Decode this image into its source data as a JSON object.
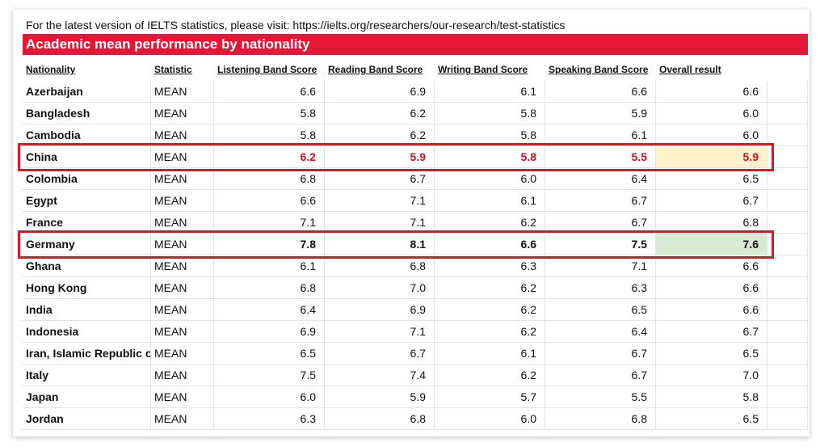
{
  "note": "For the latest version of IELTS statistics, please visit: https://ielts.org/researchers/our-research/test-statistics",
  "title": "Academic mean performance by nationality",
  "headers": [
    "Nationality",
    "Statistic",
    "Listening Band Score",
    "Reading Band Score",
    "Writing Band Score",
    "Speaking Band Score",
    "Overall result"
  ],
  "rows": [
    [
      "Azerbaijan",
      "MEAN",
      "6.6",
      "6.9",
      "6.1",
      "6.6",
      "6.6"
    ],
    [
      "Bangladesh",
      "MEAN",
      "5.8",
      "6.2",
      "5.8",
      "5.9",
      "6.0"
    ],
    [
      "Cambodia",
      "MEAN",
      "5.8",
      "6.2",
      "5.8",
      "6.1",
      "6.0"
    ],
    [
      "China",
      "MEAN",
      "6.2",
      "5.9",
      "5.8",
      "5.5",
      "5.9"
    ],
    [
      "Colombia",
      "MEAN",
      "6.8",
      "6.7",
      "6.0",
      "6.4",
      "6.5"
    ],
    [
      "Egypt",
      "MEAN",
      "6.6",
      "7.1",
      "6.1",
      "6.7",
      "6.7"
    ],
    [
      "France",
      "MEAN",
      "7.1",
      "7.1",
      "6.2",
      "6.7",
      "6.8"
    ],
    [
      "Germany",
      "MEAN",
      "7.8",
      "8.1",
      "6.6",
      "7.5",
      "7.6"
    ],
    [
      "Ghana",
      "MEAN",
      "6.1",
      "6.8",
      "6.3",
      "7.1",
      "6.6"
    ],
    [
      "Hong Kong",
      "MEAN",
      "6.8",
      "7.0",
      "6.2",
      "6.3",
      "6.6"
    ],
    [
      "India",
      "MEAN",
      "6.4",
      "6.9",
      "6.2",
      "6.5",
      "6.6"
    ],
    [
      "Indonesia",
      "MEAN",
      "6.9",
      "7.1",
      "6.2",
      "6.4",
      "6.7"
    ],
    [
      "Iran, Islamic Republic of",
      "MEAN",
      "6.5",
      "6.7",
      "6.1",
      "6.7",
      "6.5"
    ],
    [
      "Italy",
      "MEAN",
      "7.5",
      "7.4",
      "6.2",
      "6.7",
      "7.0"
    ],
    [
      "Japan",
      "MEAN",
      "6.0",
      "5.9",
      "5.7",
      "5.5",
      "5.8"
    ],
    [
      "Jordan",
      "MEAN",
      "6.3",
      "6.8",
      "6.0",
      "6.8",
      "6.5"
    ]
  ]
}
